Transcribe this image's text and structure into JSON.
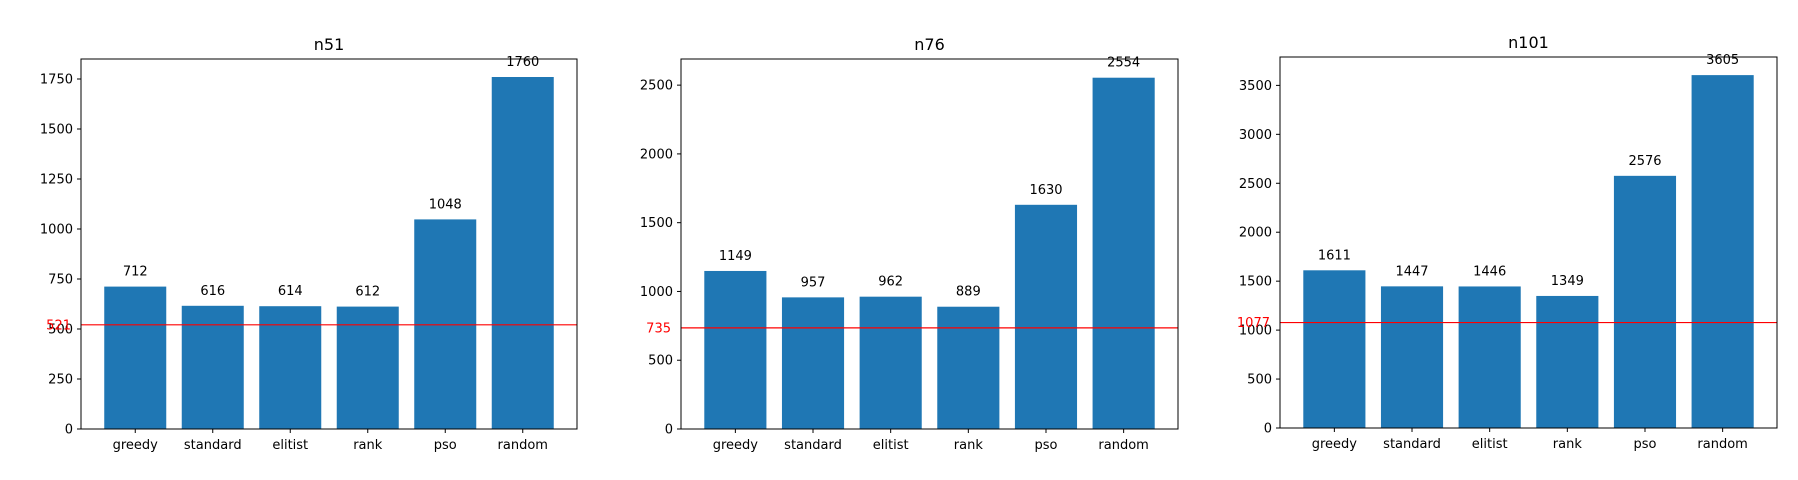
{
  "chart_data": [
    {
      "type": "bar",
      "title": "n51",
      "xlabel": "",
      "ylabel": "",
      "categories": [
        "greedy",
        "standard",
        "elitist",
        "rank",
        "pso",
        "random"
      ],
      "values": [
        712,
        616,
        614,
        612,
        1048,
        1760
      ],
      "data_labels": [
        "712",
        "616",
        "614",
        "612",
        "1048",
        "1760"
      ],
      "ylim": [
        0,
        1850
      ],
      "yticks": [
        0,
        250,
        500,
        750,
        1000,
        1250,
        1500,
        1750
      ],
      "reference_line": {
        "value": 521,
        "label": "521",
        "color": "#ff0000"
      },
      "bar_color": "#1f77b4",
      "grid": false
    },
    {
      "type": "bar",
      "title": "n76",
      "xlabel": "",
      "ylabel": "",
      "categories": [
        "greedy",
        "standard",
        "elitist",
        "rank",
        "pso",
        "random"
      ],
      "values": [
        1149,
        957,
        962,
        889,
        1630,
        2554
      ],
      "data_labels": [
        "1149",
        "957",
        "962",
        "889",
        "1630",
        "2554"
      ],
      "ylim": [
        0,
        2690
      ],
      "yticks": [
        0,
        500,
        1000,
        1500,
        2000,
        2500
      ],
      "reference_line": {
        "value": 735,
        "label": "735",
        "color": "#ff0000"
      },
      "bar_color": "#1f77b4",
      "grid": false
    },
    {
      "type": "bar",
      "title": "n101",
      "xlabel": "",
      "ylabel": "",
      "categories": [
        "greedy",
        "standard",
        "elitist",
        "rank",
        "pso",
        "random"
      ],
      "values": [
        1611,
        1447,
        1446,
        1349,
        2576,
        3605
      ],
      "data_labels": [
        "1611",
        "1447",
        "1446",
        "1349",
        "2576",
        "3605"
      ],
      "ylim": [
        0,
        3790
      ],
      "yticks": [
        0,
        500,
        1000,
        1500,
        2000,
        2500,
        3000,
        3500
      ],
      "reference_line": {
        "value": 1077,
        "label": "1077",
        "color": "#ff0000"
      },
      "bar_color": "#1f77b4",
      "grid": false
    }
  ]
}
